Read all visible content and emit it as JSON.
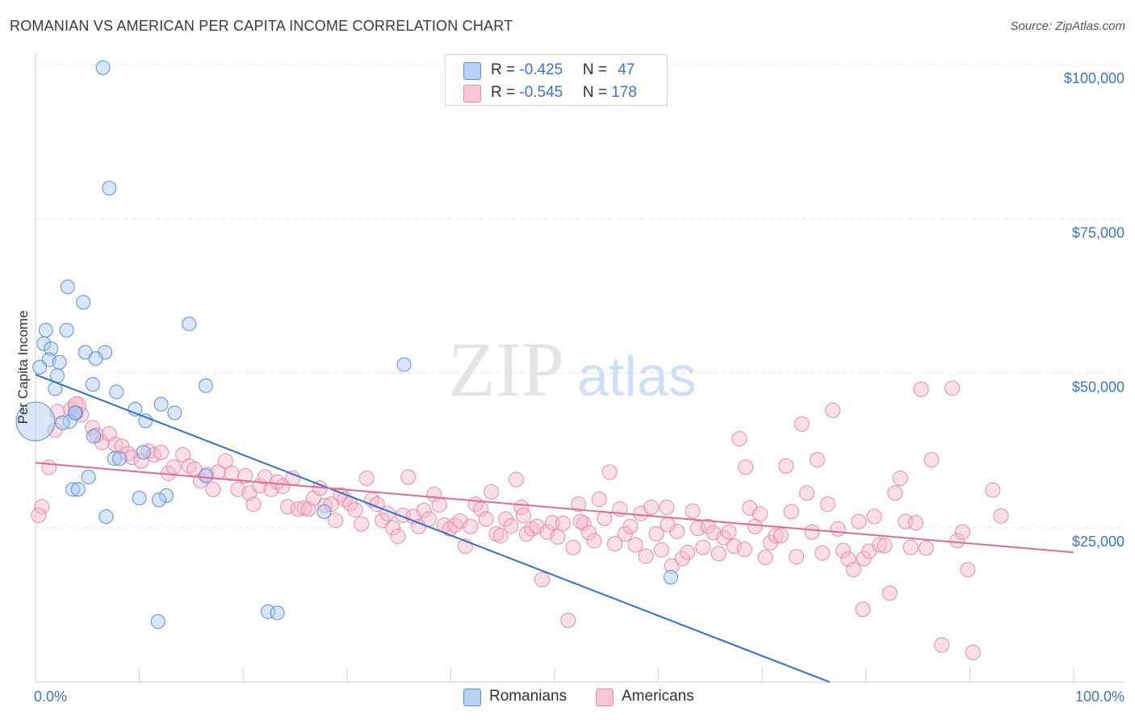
{
  "title": "ROMANIAN VS AMERICAN PER CAPITA INCOME CORRELATION CHART",
  "source": "Source: ZipAtlas.com",
  "watermark": {
    "zip": "ZIP",
    "atlas": "atlas"
  },
  "legend": {
    "rows": [
      {
        "r_label": "R = ",
        "r_value": "-0.425",
        "n_label": "N = ",
        "n_value": "47"
      },
      {
        "r_label": "R = ",
        "r_value": "-0.545",
        "n_label": "N = ",
        "n_value": "178"
      }
    ]
  },
  "bottom_legend": {
    "romanians": "Romanians",
    "americans": "Americans"
  },
  "colors": {
    "blue_fill": "#a8c8f0",
    "blue_stroke": "#5b8fd6",
    "blue_line": "#2f6fd0",
    "pink_fill": "#f7b8cd",
    "pink_stroke": "#e88aa8",
    "pink_line": "#e06a95",
    "tick_text": "#3d74c6",
    "grid": "#e2e2e2"
  },
  "chart_data": {
    "type": "scatter",
    "title": "ROMANIAN VS AMERICAN PER CAPITA INCOME CORRELATION CHART",
    "xlabel": "",
    "ylabel": "Per Capita Income",
    "xlim": [
      0,
      100
    ],
    "ylim": [
      0,
      102000
    ],
    "x_tick_labels": [
      "0.0%",
      "100.0%"
    ],
    "y_ticks": [
      25000,
      50000,
      75000,
      100000
    ],
    "y_tick_labels": [
      "$25,000",
      "$50,000",
      "$75,000",
      "$100,000"
    ],
    "grid": true,
    "legend_placement": "top-center",
    "series": [
      {
        "name": "Romanians",
        "r": -0.425,
        "n": 47,
        "trend": {
          "x": [
            0,
            76.5
          ],
          "y": [
            49800,
            0
          ]
        },
        "points": [
          [
            6.5,
            99500
          ],
          [
            7.1,
            80000
          ],
          [
            3.1,
            64000
          ],
          [
            4.6,
            61500
          ],
          [
            14.8,
            58000
          ],
          [
            1.0,
            57000
          ],
          [
            3.0,
            57000
          ],
          [
            0.8,
            54800
          ],
          [
            1.5,
            54000
          ],
          [
            4.8,
            53400
          ],
          [
            6.7,
            53400
          ],
          [
            5.8,
            52400
          ],
          [
            1.3,
            52200
          ],
          [
            2.3,
            51800
          ],
          [
            35.5,
            51400
          ],
          [
            0.4,
            51000
          ],
          [
            2.1,
            49600
          ],
          [
            5.5,
            48200
          ],
          [
            16.4,
            48000
          ],
          [
            1.9,
            47500
          ],
          [
            7.8,
            47000
          ],
          [
            12.1,
            45000
          ],
          [
            9.6,
            44200
          ],
          [
            13.4,
            43600
          ],
          [
            3.9,
            43600
          ],
          [
            3.3,
            42200
          ],
          [
            10.6,
            42300
          ],
          [
            2.6,
            42000
          ],
          [
            0.0,
            42200
          ],
          [
            5.6,
            39800
          ],
          [
            10.4,
            37200
          ],
          [
            7.6,
            36200
          ],
          [
            8.1,
            36200
          ],
          [
            16.4,
            33400
          ],
          [
            5.1,
            33200
          ],
          [
            3.6,
            31200
          ],
          [
            4.1,
            31200
          ],
          [
            12.6,
            30200
          ],
          [
            10.0,
            29800
          ],
          [
            11.9,
            29500
          ],
          [
            27.8,
            27600
          ],
          [
            6.8,
            26800
          ],
          [
            61.2,
            17000
          ],
          [
            11.8,
            9800
          ],
          [
            22.4,
            11400
          ],
          [
            23.3,
            11200
          ],
          [
            3.8,
            43600
          ]
        ]
      },
      {
        "name": "Americans",
        "r": -0.545,
        "n": 178,
        "trend": {
          "x": [
            0,
            100
          ],
          "y": [
            35500,
            21000
          ]
        },
        "points": [
          [
            0.6,
            28400
          ],
          [
            0.3,
            27000
          ],
          [
            1.3,
            34800
          ],
          [
            1.9,
            40800
          ],
          [
            2.1,
            43800
          ],
          [
            3.4,
            44200
          ],
          [
            3.9,
            45000
          ],
          [
            4.4,
            43300
          ],
          [
            5.5,
            41200
          ],
          [
            5.9,
            40000
          ],
          [
            6.4,
            38800
          ],
          [
            7.1,
            40200
          ],
          [
            7.7,
            38500
          ],
          [
            8.3,
            38200
          ],
          [
            8.9,
            37000
          ],
          [
            9.3,
            36400
          ],
          [
            10.2,
            35800
          ],
          [
            10.9,
            37400
          ],
          [
            11.4,
            36800
          ],
          [
            12.1,
            37200
          ],
          [
            12.8,
            33800
          ],
          [
            13.3,
            34800
          ],
          [
            14.2,
            36800
          ],
          [
            14.8,
            35000
          ],
          [
            15.3,
            34500
          ],
          [
            15.9,
            32600
          ],
          [
            16.5,
            33600
          ],
          [
            17.1,
            31200
          ],
          [
            17.6,
            34000
          ],
          [
            18.3,
            35800
          ],
          [
            18.9,
            33800
          ],
          [
            19.5,
            31200
          ],
          [
            20.2,
            33400
          ],
          [
            20.6,
            30600
          ],
          [
            21.0,
            28800
          ],
          [
            21.6,
            31800
          ],
          [
            22.1,
            33200
          ],
          [
            22.7,
            31200
          ],
          [
            23.3,
            32400
          ],
          [
            23.8,
            31700
          ],
          [
            24.3,
            28400
          ],
          [
            24.8,
            33000
          ],
          [
            25.3,
            28000
          ],
          [
            25.9,
            28200
          ],
          [
            26.3,
            28000
          ],
          [
            26.8,
            29800
          ],
          [
            27.4,
            31400
          ],
          [
            27.9,
            28600
          ],
          [
            28.5,
            28800
          ],
          [
            28.9,
            26200
          ],
          [
            29.4,
            30300
          ],
          [
            29.8,
            29600
          ],
          [
            30.3,
            28900
          ],
          [
            30.8,
            27900
          ],
          [
            31.4,
            25600
          ],
          [
            31.9,
            33000
          ],
          [
            32.4,
            29500
          ],
          [
            32.9,
            28800
          ],
          [
            33.4,
            26200
          ],
          [
            33.9,
            27300
          ],
          [
            34.4,
            25000
          ],
          [
            34.9,
            23600
          ],
          [
            35.4,
            27000
          ],
          [
            35.9,
            33200
          ],
          [
            36.4,
            26800
          ],
          [
            36.9,
            25200
          ],
          [
            37.4,
            27800
          ],
          [
            37.9,
            26400
          ],
          [
            38.4,
            30400
          ],
          [
            38.9,
            28700
          ],
          [
            39.4,
            25400
          ],
          [
            39.9,
            24800
          ],
          [
            40.4,
            25400
          ],
          [
            40.9,
            26100
          ],
          [
            41.4,
            22000
          ],
          [
            41.9,
            25200
          ],
          [
            42.4,
            28800
          ],
          [
            42.9,
            28000
          ],
          [
            43.4,
            26400
          ],
          [
            43.9,
            30800
          ],
          [
            44.4,
            24000
          ],
          [
            44.8,
            23700
          ],
          [
            45.3,
            26400
          ],
          [
            45.8,
            25300
          ],
          [
            46.3,
            32800
          ],
          [
            46.8,
            28300
          ],
          [
            47.3,
            24000
          ],
          [
            47.8,
            24800
          ],
          [
            48.3,
            25200
          ],
          [
            48.8,
            16600
          ],
          [
            49.3,
            24300
          ],
          [
            49.8,
            25800
          ],
          [
            50.3,
            23500
          ],
          [
            50.8,
            25700
          ],
          [
            51.3,
            10000
          ],
          [
            51.8,
            21800
          ],
          [
            52.3,
            28800
          ],
          [
            52.8,
            25700
          ],
          [
            53.3,
            24200
          ],
          [
            53.8,
            22900
          ],
          [
            54.3,
            29600
          ],
          [
            54.8,
            26500
          ],
          [
            55.3,
            34000
          ],
          [
            55.8,
            22400
          ],
          [
            56.3,
            28000
          ],
          [
            56.8,
            24000
          ],
          [
            57.3,
            25200
          ],
          [
            57.8,
            22200
          ],
          [
            58.3,
            27300
          ],
          [
            58.8,
            20400
          ],
          [
            59.3,
            28300
          ],
          [
            59.8,
            24000
          ],
          [
            60.3,
            21400
          ],
          [
            60.8,
            28300
          ],
          [
            61.3,
            18800
          ],
          [
            61.8,
            24400
          ],
          [
            62.3,
            20000
          ],
          [
            62.8,
            21000
          ],
          [
            63.3,
            27700
          ],
          [
            63.8,
            24900
          ],
          [
            64.3,
            21800
          ],
          [
            64.8,
            25200
          ],
          [
            65.3,
            24200
          ],
          [
            65.8,
            20800
          ],
          [
            66.3,
            23400
          ],
          [
            66.8,
            24300
          ],
          [
            67.3,
            22000
          ],
          [
            67.8,
            39400
          ],
          [
            68.3,
            21500
          ],
          [
            68.8,
            28200
          ],
          [
            69.3,
            25200
          ],
          [
            69.8,
            27200
          ],
          [
            70.3,
            20200
          ],
          [
            70.8,
            22600
          ],
          [
            71.3,
            23700
          ],
          [
            71.8,
            23700
          ],
          [
            72.3,
            35000
          ],
          [
            72.8,
            27600
          ],
          [
            73.3,
            20300
          ],
          [
            73.8,
            41800
          ],
          [
            74.3,
            30600
          ],
          [
            74.8,
            24300
          ],
          [
            75.3,
            36000
          ],
          [
            75.8,
            20900
          ],
          [
            76.3,
            28800
          ],
          [
            76.8,
            44000
          ],
          [
            77.3,
            24800
          ],
          [
            77.8,
            21300
          ],
          [
            78.3,
            19900
          ],
          [
            78.8,
            18200
          ],
          [
            79.3,
            26000
          ],
          [
            79.8,
            20000
          ],
          [
            80.3,
            21200
          ],
          [
            80.8,
            26800
          ],
          [
            81.3,
            22200
          ],
          [
            81.8,
            22100
          ],
          [
            82.3,
            14400
          ],
          [
            82.8,
            30600
          ],
          [
            83.3,
            33000
          ],
          [
            83.8,
            26000
          ],
          [
            84.3,
            21800
          ],
          [
            84.8,
            25800
          ],
          [
            85.3,
            47400
          ],
          [
            85.8,
            21700
          ],
          [
            86.3,
            36000
          ],
          [
            87.3,
            6000
          ],
          [
            88.3,
            47600
          ],
          [
            88.8,
            22900
          ],
          [
            89.3,
            24300
          ],
          [
            89.8,
            18200
          ],
          [
            90.3,
            4800
          ],
          [
            92.2,
            31100
          ],
          [
            93.0,
            26900
          ],
          [
            79.7,
            11800
          ],
          [
            68.4,
            34800
          ],
          [
            60.9,
            25500
          ],
          [
            47.0,
            27000
          ],
          [
            52.5,
            26000
          ]
        ]
      }
    ]
  }
}
